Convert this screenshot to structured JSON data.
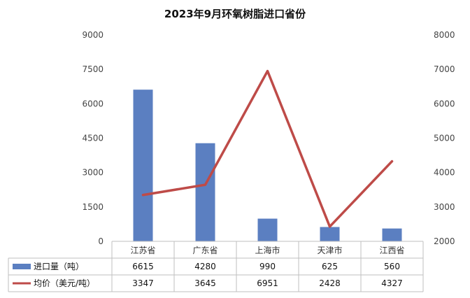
{
  "chart_data": {
    "type": "bar",
    "title": "2023年9月环氧树脂进口省份",
    "categories": [
      "江苏省",
      "广东省",
      "上海市",
      "天津市",
      "江西省"
    ],
    "series": [
      {
        "name": "进口量（吨）",
        "type": "bar",
        "axis": "left",
        "color": "#5B7FC1",
        "values": [
          6615,
          4280,
          990,
          625,
          560
        ]
      },
      {
        "name": "均价（美元/吨）",
        "type": "line",
        "axis": "right",
        "color": "#BE4B48",
        "values": [
          3347,
          3645,
          6951,
          2428,
          4327
        ]
      }
    ],
    "y_left": {
      "ylim": [
        0,
        9000
      ],
      "ticks": [
        0,
        1500,
        3000,
        4500,
        6000,
        7500,
        9000
      ]
    },
    "y_right": {
      "ylim": [
        2000,
        8000
      ],
      "ticks": [
        2000,
        3000,
        4000,
        5000,
        6000,
        7000,
        8000
      ]
    },
    "grid": false,
    "legend": "data-table"
  }
}
